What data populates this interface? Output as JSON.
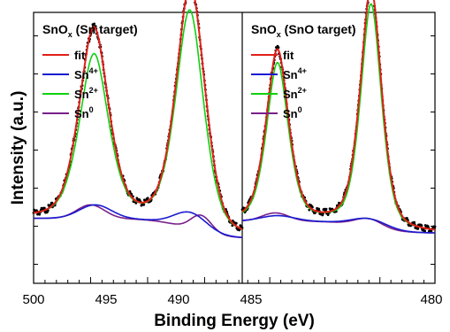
{
  "chart_data": {
    "type": "line",
    "xlabel": "Binding Energy (eV)",
    "ylabel": "Intensity (a.u.)",
    "x_ticks": [
      "500",
      "495",
      "490",
      "485",
      "480"
    ],
    "panels": [
      {
        "title_main": "SnO",
        "title_sub": "x",
        "title_rest": " (Sn target)",
        "xlim": [
          500,
          481.7
        ],
        "legend": [
          {
            "name": "fit",
            "sup": "",
            "color": "#e0201a"
          },
          {
            "name": "Sn",
            "sup": "4+",
            "color": "#1a1ad0"
          },
          {
            "name": "Sn",
            "sup": "2+",
            "color": "#10d010"
          },
          {
            "name": "Sn",
            "sup": "0",
            "color": "#7a1f8a"
          }
        ],
        "background": {
          "start": 0.24,
          "step": 0.075,
          "center": 486.3
        },
        "peaks": [
          {
            "center": 494.7,
            "height": 0.6,
            "width": 1.35,
            "component": "Sn2+"
          },
          {
            "center": 486.3,
            "height": 0.8,
            "width": 1.3,
            "component": "Sn2+"
          },
          {
            "center": 495.0,
            "height": 0.05,
            "width": 1.2,
            "component": "Sn0"
          },
          {
            "center": 485.3,
            "height": 0.06,
            "width": 0.9,
            "component": "Sn0"
          },
          {
            "center": 494.6,
            "height": 0.05,
            "width": 1.4,
            "component": "Sn4+"
          },
          {
            "center": 486.2,
            "height": 0.06,
            "width": 1.4,
            "component": "Sn4+"
          }
        ]
      },
      {
        "title_main": "SnO",
        "title_sub": "x",
        "title_rest": " (SnO target)",
        "xlim": [
          497.5,
          480
        ],
        "legend": [
          {
            "name": "fit",
            "sup": "",
            "color": "#e0201a"
          },
          {
            "name": "Sn",
            "sup": "4+",
            "color": "#1a1ad0"
          },
          {
            "name": "Sn",
            "sup": "2+",
            "color": "#10d010"
          },
          {
            "name": "Sn",
            "sup": "0",
            "color": "#7a1f8a"
          }
        ],
        "background": {
          "start": 0.23,
          "step": 0.045,
          "center": 485.8
        },
        "peaks": [
          {
            "center": 494.3,
            "height": 0.58,
            "width": 1.05,
            "component": "Sn2+"
          },
          {
            "center": 485.8,
            "height": 0.82,
            "width": 1.0,
            "component": "Sn2+"
          },
          {
            "center": 494.5,
            "height": 0.03,
            "width": 1.2,
            "component": "Sn0"
          },
          {
            "center": 486.0,
            "height": 0.03,
            "width": 1.2,
            "component": "Sn0"
          },
          {
            "center": 494.3,
            "height": 0.02,
            "width": 1.5,
            "component": "Sn4+"
          },
          {
            "center": 485.9,
            "height": 0.03,
            "width": 1.5,
            "component": "Sn4+"
          }
        ]
      }
    ]
  }
}
